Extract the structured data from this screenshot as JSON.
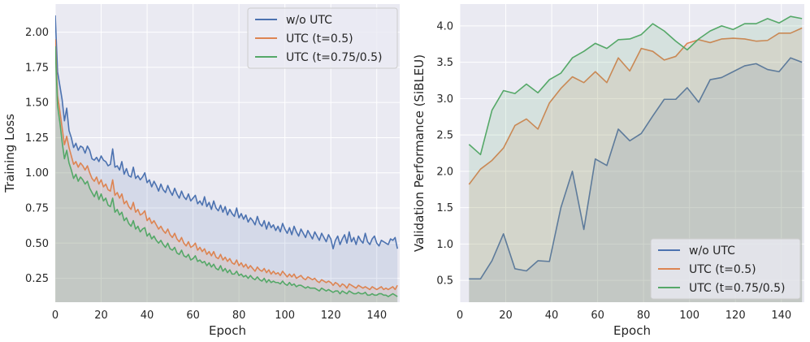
{
  "chart_data": [
    {
      "type": "line",
      "title": "",
      "xlabel": "Epoch",
      "ylabel": "Training Loss",
      "xlim": [
        0,
        150
      ],
      "ylim": [
        0.08,
        2.2
      ],
      "xticks": [
        0,
        20,
        40,
        60,
        80,
        100,
        120,
        140
      ],
      "yticks": [
        0.25,
        0.5,
        0.75,
        1.0,
        1.25,
        1.5,
        1.75,
        2.0
      ],
      "ytick_labels": [
        "0.25",
        "0.50",
        "0.75",
        "1.00",
        "1.25",
        "1.50",
        "1.75",
        "2.00"
      ],
      "grid": true,
      "fill_to_bottom": true,
      "legend_position": "top-right",
      "x": [
        0,
        1,
        2,
        3,
        4,
        5,
        6,
        7,
        8,
        9,
        10,
        11,
        12,
        13,
        14,
        15,
        16,
        17,
        18,
        19,
        20,
        21,
        22,
        23,
        24,
        25,
        26,
        27,
        28,
        29,
        30,
        31,
        32,
        33,
        34,
        35,
        36,
        37,
        38,
        39,
        40,
        41,
        42,
        43,
        44,
        45,
        46,
        47,
        48,
        49,
        50,
        51,
        52,
        53,
        54,
        55,
        56,
        57,
        58,
        59,
        60,
        61,
        62,
        63,
        64,
        65,
        66,
        67,
        68,
        69,
        70,
        71,
        72,
        73,
        74,
        75,
        76,
        77,
        78,
        79,
        80,
        81,
        82,
        83,
        84,
        85,
        86,
        87,
        88,
        89,
        90,
        91,
        92,
        93,
        94,
        95,
        96,
        97,
        98,
        99,
        100,
        101,
        102,
        103,
        104,
        105,
        106,
        107,
        108,
        109,
        110,
        111,
        112,
        113,
        114,
        115,
        116,
        117,
        118,
        119,
        120,
        121,
        122,
        123,
        124,
        125,
        126,
        127,
        128,
        129,
        130,
        131,
        132,
        133,
        134,
        135,
        136,
        137,
        138,
        139,
        140,
        141,
        142,
        143,
        144,
        145,
        146,
        147,
        148,
        149
      ],
      "series": [
        {
          "name": "w/o UTC",
          "color": "#4c72b0",
          "values": [
            2.12,
            1.72,
            1.62,
            1.52,
            1.37,
            1.46,
            1.3,
            1.25,
            1.18,
            1.21,
            1.16,
            1.19,
            1.18,
            1.14,
            1.19,
            1.16,
            1.1,
            1.09,
            1.11,
            1.08,
            1.12,
            1.09,
            1.08,
            1.05,
            1.06,
            1.17,
            1.04,
            1.05,
            1.02,
            1.08,
            0.99,
            1.03,
            0.98,
            0.97,
            1.04,
            0.96,
            0.98,
            0.95,
            0.97,
            1.0,
            0.93,
            0.95,
            0.9,
            0.94,
            0.91,
            0.87,
            0.92,
            0.88,
            0.86,
            0.91,
            0.87,
            0.84,
            0.89,
            0.85,
            0.82,
            0.87,
            0.83,
            0.81,
            0.85,
            0.8,
            0.82,
            0.84,
            0.78,
            0.8,
            0.77,
            0.83,
            0.76,
            0.79,
            0.74,
            0.8,
            0.75,
            0.73,
            0.77,
            0.72,
            0.76,
            0.7,
            0.74,
            0.71,
            0.69,
            0.75,
            0.68,
            0.71,
            0.67,
            0.7,
            0.65,
            0.68,
            0.66,
            0.63,
            0.69,
            0.64,
            0.62,
            0.66,
            0.6,
            0.65,
            0.61,
            0.63,
            0.59,
            0.62,
            0.58,
            0.64,
            0.6,
            0.57,
            0.61,
            0.56,
            0.62,
            0.58,
            0.55,
            0.6,
            0.57,
            0.54,
            0.59,
            0.56,
            0.53,
            0.58,
            0.55,
            0.52,
            0.57,
            0.54,
            0.51,
            0.56,
            0.53,
            0.46,
            0.52,
            0.55,
            0.49,
            0.53,
            0.56,
            0.5,
            0.58,
            0.51,
            0.54,
            0.49,
            0.55,
            0.52,
            0.5,
            0.57,
            0.51,
            0.49,
            0.53,
            0.55,
            0.5,
            0.48,
            0.52,
            0.51,
            0.5,
            0.49,
            0.53,
            0.52,
            0.54,
            0.46
          ]
        },
        {
          "name": "UTC (t=0.5)",
          "color": "#dd8452",
          "values": [
            1.95,
            1.55,
            1.44,
            1.32,
            1.2,
            1.26,
            1.18,
            1.12,
            1.06,
            1.08,
            1.04,
            1.07,
            1.05,
            1.02,
            1.05,
            1.0,
            0.96,
            0.94,
            0.97,
            0.92,
            0.95,
            0.9,
            0.92,
            0.88,
            0.87,
            0.95,
            0.84,
            0.86,
            0.82,
            0.85,
            0.78,
            0.8,
            0.76,
            0.74,
            0.79,
            0.72,
            0.74,
            0.7,
            0.71,
            0.73,
            0.66,
            0.68,
            0.64,
            0.66,
            0.63,
            0.6,
            0.62,
            0.59,
            0.57,
            0.6,
            0.56,
            0.54,
            0.57,
            0.53,
            0.51,
            0.54,
            0.5,
            0.48,
            0.51,
            0.47,
            0.48,
            0.5,
            0.45,
            0.47,
            0.44,
            0.46,
            0.42,
            0.44,
            0.41,
            0.44,
            0.4,
            0.39,
            0.42,
            0.38,
            0.4,
            0.37,
            0.39,
            0.36,
            0.35,
            0.38,
            0.34,
            0.36,
            0.33,
            0.35,
            0.32,
            0.34,
            0.32,
            0.3,
            0.33,
            0.31,
            0.3,
            0.32,
            0.29,
            0.31,
            0.28,
            0.3,
            0.28,
            0.29,
            0.27,
            0.3,
            0.28,
            0.26,
            0.28,
            0.26,
            0.28,
            0.25,
            0.26,
            0.27,
            0.25,
            0.24,
            0.26,
            0.25,
            0.24,
            0.25,
            0.23,
            0.22,
            0.24,
            0.23,
            0.22,
            0.23,
            0.22,
            0.2,
            0.22,
            0.21,
            0.19,
            0.21,
            0.2,
            0.18,
            0.21,
            0.2,
            0.19,
            0.18,
            0.2,
            0.19,
            0.18,
            0.19,
            0.18,
            0.17,
            0.19,
            0.18,
            0.17,
            0.18,
            0.19,
            0.17,
            0.18,
            0.17,
            0.18,
            0.19,
            0.17,
            0.2
          ]
        },
        {
          "name": "UTC (t=0.75/0.5)",
          "color": "#55a868",
          "values": [
            1.9,
            1.48,
            1.36,
            1.22,
            1.1,
            1.16,
            1.07,
            1.02,
            0.96,
            0.99,
            0.94,
            0.97,
            0.95,
            0.92,
            0.94,
            0.89,
            0.86,
            0.83,
            0.87,
            0.81,
            0.85,
            0.8,
            0.82,
            0.77,
            0.76,
            0.82,
            0.72,
            0.74,
            0.7,
            0.72,
            0.66,
            0.68,
            0.64,
            0.62,
            0.66,
            0.6,
            0.62,
            0.58,
            0.6,
            0.61,
            0.55,
            0.57,
            0.53,
            0.55,
            0.52,
            0.5,
            0.52,
            0.49,
            0.47,
            0.5,
            0.46,
            0.45,
            0.47,
            0.43,
            0.42,
            0.45,
            0.41,
            0.4,
            0.42,
            0.38,
            0.39,
            0.41,
            0.37,
            0.38,
            0.36,
            0.37,
            0.34,
            0.36,
            0.33,
            0.35,
            0.32,
            0.31,
            0.34,
            0.3,
            0.32,
            0.29,
            0.31,
            0.28,
            0.28,
            0.3,
            0.27,
            0.28,
            0.26,
            0.27,
            0.25,
            0.27,
            0.25,
            0.24,
            0.26,
            0.24,
            0.23,
            0.25,
            0.22,
            0.24,
            0.22,
            0.23,
            0.22,
            0.22,
            0.21,
            0.23,
            0.21,
            0.2,
            0.22,
            0.2,
            0.21,
            0.19,
            0.2,
            0.2,
            0.19,
            0.18,
            0.19,
            0.18,
            0.18,
            0.18,
            0.17,
            0.16,
            0.18,
            0.17,
            0.16,
            0.17,
            0.16,
            0.15,
            0.16,
            0.16,
            0.14,
            0.16,
            0.15,
            0.14,
            0.16,
            0.15,
            0.14,
            0.14,
            0.15,
            0.14,
            0.14,
            0.15,
            0.13,
            0.13,
            0.14,
            0.13,
            0.13,
            0.14,
            0.14,
            0.13,
            0.13,
            0.12,
            0.13,
            0.14,
            0.13,
            0.12
          ]
        }
      ],
      "legend": [
        "w/o UTC",
        "UTC (t=0.5)",
        "UTC (t=0.75/0.5)"
      ]
    },
    {
      "type": "line",
      "title": "",
      "xlabel": "Epoch",
      "ylabel": "Validation Performance (SiBLEU)",
      "xlim": [
        0,
        150
      ],
      "ylim": [
        0.2,
        4.3
      ],
      "xticks": [
        0,
        20,
        40,
        60,
        80,
        100,
        120,
        140
      ],
      "yticks": [
        0.5,
        1.0,
        1.5,
        2.0,
        2.5,
        3.0,
        3.5,
        4.0
      ],
      "ytick_labels": [
        "0.5",
        "1.0",
        "1.5",
        "2.0",
        "2.5",
        "3.0",
        "3.5",
        "4.0"
      ],
      "grid": true,
      "fill_to_bottom": true,
      "legend_position": "bottom-right",
      "x": [
        4,
        9,
        14,
        19,
        24,
        29,
        34,
        39,
        44,
        49,
        54,
        59,
        64,
        69,
        74,
        79,
        84,
        89,
        94,
        99,
        104,
        109,
        114,
        119,
        124,
        129,
        134,
        139,
        144,
        149
      ],
      "series": [
        {
          "name": "w/o UTC",
          "color": "#4c72b0",
          "values": [
            0.52,
            0.52,
            0.77,
            1.14,
            0.66,
            0.63,
            0.77,
            0.76,
            1.5,
            2.0,
            1.2,
            2.17,
            2.08,
            2.58,
            2.42,
            2.52,
            2.76,
            2.99,
            2.99,
            3.15,
            2.95,
            3.26,
            3.29,
            3.37,
            3.45,
            3.48,
            3.4,
            3.37,
            3.56,
            3.5
          ]
        },
        {
          "name": "UTC (t=0.5)",
          "color": "#dd8452",
          "values": [
            1.82,
            2.03,
            2.15,
            2.32,
            2.63,
            2.72,
            2.58,
            2.94,
            3.14,
            3.3,
            3.22,
            3.37,
            3.22,
            3.56,
            3.38,
            3.69,
            3.65,
            3.53,
            3.58,
            3.76,
            3.81,
            3.77,
            3.82,
            3.83,
            3.82,
            3.79,
            3.8,
            3.9,
            3.9,
            3.97
          ]
        },
        {
          "name": "UTC (t=0.75/0.5)",
          "color": "#55a868",
          "values": [
            2.37,
            2.23,
            2.84,
            3.11,
            3.07,
            3.2,
            3.08,
            3.26,
            3.35,
            3.56,
            3.65,
            3.76,
            3.69,
            3.81,
            3.82,
            3.88,
            4.03,
            3.93,
            3.79,
            3.67,
            3.82,
            3.93,
            4.0,
            3.95,
            4.03,
            4.03,
            4.1,
            4.04,
            4.13,
            4.1
          ]
        }
      ],
      "legend": [
        "w/o UTC",
        "UTC (t=0.5)",
        "UTC (t=0.75/0.5)"
      ]
    }
  ]
}
